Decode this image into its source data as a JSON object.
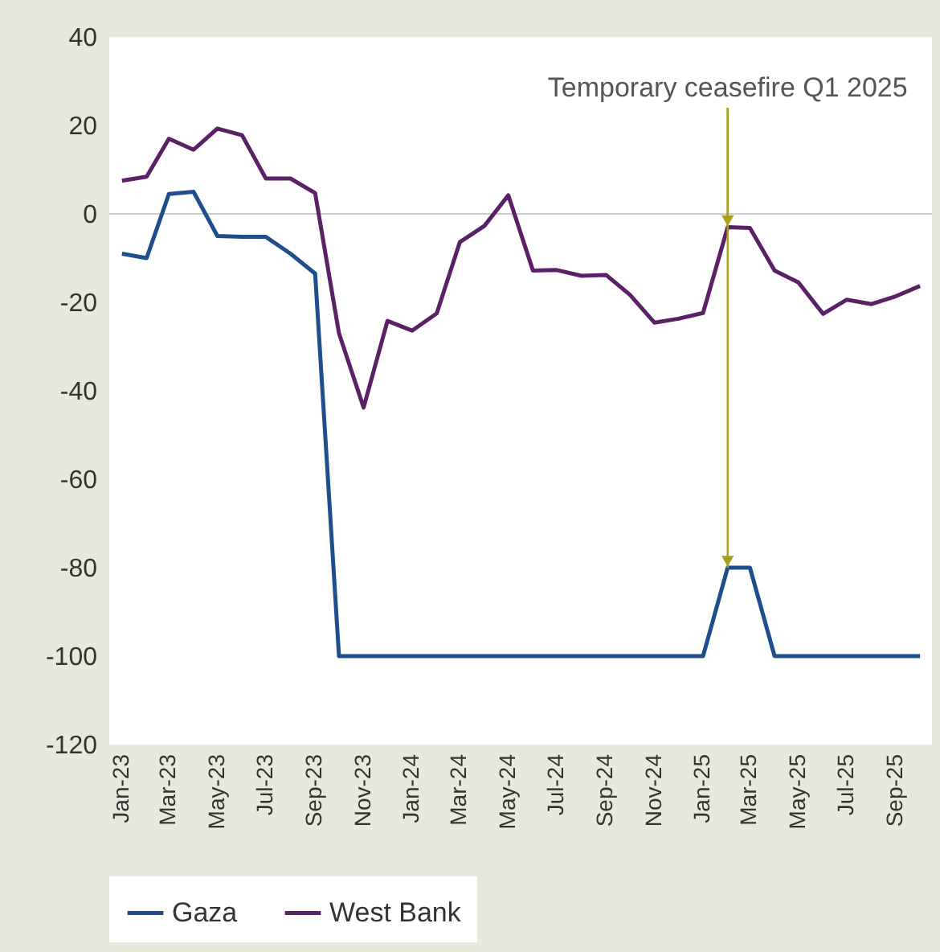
{
  "chart_data": {
    "type": "line",
    "x": [
      "2023-01",
      "2023-02",
      "2023-03",
      "2023-04",
      "2023-05",
      "2023-06",
      "2023-07",
      "2023-08",
      "2023-09",
      "2023-10",
      "2023-11",
      "2023-12",
      "2024-01",
      "2024-02",
      "2024-03",
      "2024-04",
      "2024-05",
      "2024-06",
      "2024-07",
      "2024-08",
      "2024-09",
      "2024-10",
      "2024-11",
      "2024-12",
      "2025-01",
      "2025-02",
      "2025-03",
      "2025-04",
      "2025-05",
      "2025-06",
      "2025-07",
      "2025-08",
      "2025-09",
      "2025-10"
    ],
    "series": [
      {
        "name": "Gaza",
        "color": "#1f4e8c",
        "values": [
          -9,
          -10,
          4.5,
          5,
          -5,
          -5.2,
          -5.2,
          -9,
          -13.5,
          -100,
          -100,
          -100,
          -100,
          -100,
          -100,
          -100,
          -100,
          -100,
          -100,
          -100,
          -100,
          -100,
          -100,
          -100,
          -100,
          -80,
          -80,
          -100,
          -100,
          -100,
          -100,
          -100,
          -100,
          -100
        ]
      },
      {
        "name": "West Bank",
        "color": "#5b2166",
        "values": [
          7.5,
          8.4,
          17,
          14.5,
          19.3,
          17.8,
          8,
          8,
          4.7,
          -27,
          -43.8,
          -24.2,
          -26.4,
          -22.5,
          -6.4,
          -2.7,
          4.2,
          -12.8,
          -12.7,
          -14,
          -13.8,
          -18.3,
          -24.6,
          -23.7,
          -22.4,
          -3,
          -3.2,
          -12.8,
          -15.5,
          -22.6,
          -19.4,
          -20.4,
          -18.6,
          -16.3
        ]
      }
    ],
    "xlim": [
      "2022-12-16",
      "2025-10-16"
    ],
    "xticks": [
      {
        "value": "2023-01",
        "label": "Jan-23"
      },
      {
        "value": "2023-03",
        "label": "Mar-23"
      },
      {
        "value": "2023-05",
        "label": "May-23"
      },
      {
        "value": "2023-07",
        "label": "Jul-23"
      },
      {
        "value": "2023-09",
        "label": "Sep-23"
      },
      {
        "value": "2023-11",
        "label": "Nov-23"
      },
      {
        "value": "2024-01",
        "label": "Jan-24"
      },
      {
        "value": "2024-03",
        "label": "Mar-24"
      },
      {
        "value": "2024-05",
        "label": "May-24"
      },
      {
        "value": "2024-07",
        "label": "Jul-24"
      },
      {
        "value": "2024-09",
        "label": "Sep-24"
      },
      {
        "value": "2024-11",
        "label": "Nov-24"
      },
      {
        "value": "2025-01",
        "label": "Jan-25"
      },
      {
        "value": "2025-03",
        "label": "Mar-25"
      },
      {
        "value": "2025-05",
        "label": "May-25"
      },
      {
        "value": "2025-07",
        "label": "Jul-25"
      },
      {
        "value": "2025-09",
        "label": "Sep-25"
      }
    ],
    "ylim": [
      -120,
      40
    ],
    "yticks": [
      -120,
      -100,
      -80,
      -60,
      -40,
      -20,
      0,
      20,
      40
    ],
    "ref_lines": [
      {
        "axis": "y",
        "value": 0,
        "color": "#cccccc"
      }
    ],
    "annotations": [
      {
        "text": "Temporary ceasefire Q1 2025",
        "x": "2025-02",
        "y": -80
      }
    ],
    "legend": "bottom",
    "grid": false,
    "marker": "none",
    "line_style": "solid"
  }
}
